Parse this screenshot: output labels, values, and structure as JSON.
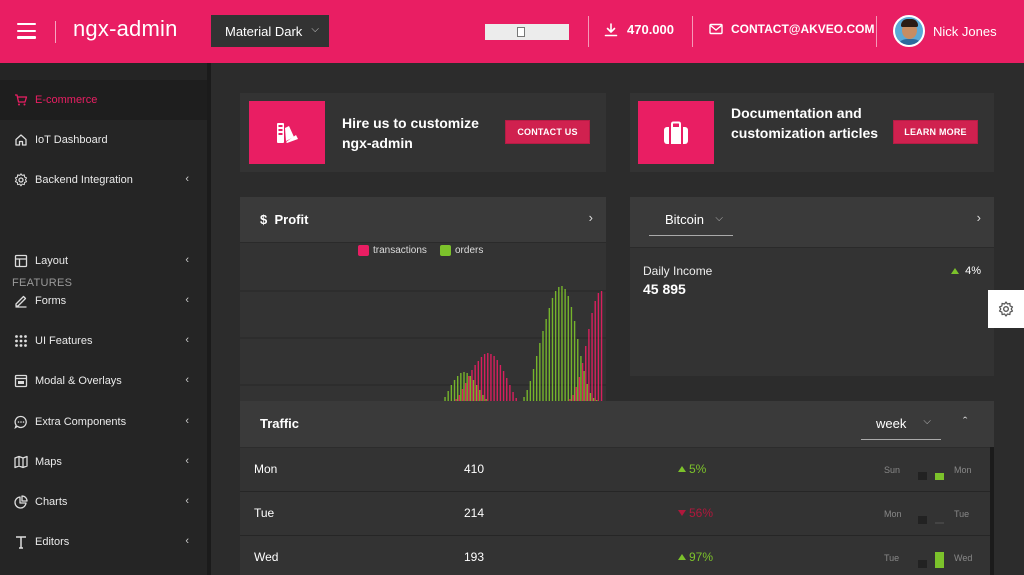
{
  "header": {
    "logo": "ngx-admin",
    "theme": "Material Dark",
    "downloads": "470.000",
    "contact": "CONTACT@AKVEO.COM",
    "user_name": "Nick Jones"
  },
  "sidebar": {
    "group_label": "FEATURES",
    "items": [
      {
        "label": "E-commerce",
        "icon": "shopping-cart-icon"
      },
      {
        "label": "IoT Dashboard",
        "icon": "home-icon"
      },
      {
        "label": "Backend Integration",
        "icon": "gear-icon"
      },
      {
        "label": "Layout",
        "icon": "layout-icon"
      },
      {
        "label": "Forms",
        "icon": "edit-icon"
      },
      {
        "label": "UI Features",
        "icon": "grid-icon"
      },
      {
        "label": "Modal & Overlays",
        "icon": "browser-icon"
      },
      {
        "label": "Extra Components",
        "icon": "chat-icon"
      },
      {
        "label": "Maps",
        "icon": "map-icon"
      },
      {
        "label": "Charts",
        "icon": "pie-chart-icon"
      },
      {
        "label": "Editors",
        "icon": "text-icon"
      }
    ]
  },
  "promos": [
    {
      "title": "Hire us to customize ngx-admin",
      "button": "CONTACT US",
      "icon": "palette-icon"
    },
    {
      "title": "Documentation and customization articles",
      "button": "LEARN MORE",
      "icon": "briefcase-icon"
    }
  ],
  "profit": {
    "title": "Profit",
    "currency_symbol": "$"
  },
  "chart_data": {
    "type": "bar",
    "title": "Profit",
    "series": [
      {
        "name": "transactions",
        "color": "#e91e63",
        "values": [
          0,
          0,
          0,
          0,
          0,
          0,
          0,
          0,
          0,
          0,
          0,
          0,
          0,
          0,
          0,
          0,
          0,
          0,
          0,
          0,
          0,
          0,
          0,
          0,
          0,
          0,
          0,
          0,
          0,
          0,
          0,
          0,
          0,
          0,
          0,
          0,
          0,
          0,
          0,
          0,
          0,
          0,
          0,
          0,
          0,
          0,
          0,
          0,
          0,
          0,
          0,
          0,
          0,
          2,
          6,
          12,
          18,
          25,
          31,
          36,
          40,
          44,
          47,
          48,
          47,
          45,
          41,
          36,
          30,
          23,
          16,
          9,
          3,
          0,
          0,
          0,
          0,
          0,
          0,
          0,
          0,
          0,
          0,
          0,
          0,
          0,
          0,
          0,
          0,
          2,
          6,
          14,
          24,
          38,
          55,
          72,
          88,
          100,
          108,
          110
        ]
      },
      {
        "name": "orders",
        "color": "#7cc22b",
        "values": [
          0,
          0,
          0,
          0,
          0,
          0,
          0,
          0,
          0,
          0,
          0,
          0,
          0,
          0,
          0,
          0,
          0,
          0,
          0,
          0,
          0,
          0,
          0,
          0,
          0,
          0,
          0,
          0,
          0,
          0,
          0,
          0,
          0,
          0,
          0,
          0,
          0,
          0,
          0,
          0,
          0,
          0,
          0,
          0,
          0,
          0,
          0,
          0,
          0,
          4,
          10,
          16,
          21,
          25,
          28,
          29,
          28,
          25,
          21,
          16,
          11,
          6,
          2,
          0,
          0,
          0,
          0,
          0,
          0,
          0,
          0,
          0,
          0,
          0,
          4,
          11,
          20,
          32,
          45,
          58,
          70,
          82,
          93,
          103,
          110,
          114,
          115,
          112,
          105,
          94,
          80,
          62,
          45,
          30,
          17,
          8,
          3,
          1,
          0,
          0
        ]
      }
    ],
    "xlabel": "",
    "ylabel": ""
  },
  "bitcoin": {
    "selector": "Bitcoin",
    "label": "Daily Income",
    "value": "45 895",
    "delta": "4%"
  },
  "traffic": {
    "title": "Traffic",
    "period": "week",
    "rows": [
      {
        "day": "Mon",
        "value": "410",
        "delta": "5%",
        "trend": "up",
        "prev": "Sun",
        "cur": "Mon",
        "cur_level": 0.4
      },
      {
        "day": "Tue",
        "value": "214",
        "delta": "56%",
        "trend": "down",
        "prev": "Mon",
        "cur": "Tue",
        "cur_level": 0.1
      },
      {
        "day": "Wed",
        "value": "193",
        "delta": "97%",
        "trend": "up",
        "prev": "Tue",
        "cur": "Wed",
        "cur_level": 0.9
      }
    ]
  },
  "colors": {
    "accent": "#e91e63",
    "success": "#7cc22b",
    "danger": "#b0183c"
  }
}
